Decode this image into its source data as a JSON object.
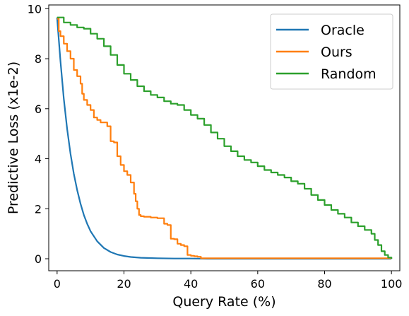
{
  "chart_data": {
    "type": "line",
    "xlabel": "Query Rate (%)",
    "ylabel": "Predictive Loss (x1e-2)",
    "xlim": [
      -2.5,
      102.5
    ],
    "ylim": [
      -0.48,
      10.15
    ],
    "x_ticks": [
      0,
      20,
      40,
      60,
      80,
      100
    ],
    "y_ticks": [
      0,
      2,
      4,
      6,
      8,
      10
    ],
    "grid": false,
    "legend": "top-right",
    "series": [
      {
        "name": "Oracle",
        "color": "#1f77b4",
        "step": false,
        "x": [
          0,
          1,
          2,
          3,
          4,
          5,
          6,
          7,
          8,
          9,
          10,
          12,
          14,
          16,
          18,
          20,
          22,
          25,
          30,
          35,
          40,
          45,
          50,
          60,
          70,
          80,
          90,
          100
        ],
        "y": [
          9.65,
          7.9,
          6.4,
          5.2,
          4.2,
          3.4,
          2.75,
          2.2,
          1.75,
          1.4,
          1.1,
          0.7,
          0.43,
          0.27,
          0.17,
          0.11,
          0.07,
          0.04,
          0.02,
          0.01,
          0.01,
          0.0,
          0.0,
          0.0,
          0.0,
          0.0,
          0.0,
          0.0
        ]
      },
      {
        "name": "Ours",
        "color": "#ff7f0e",
        "step": true,
        "x": [
          0,
          0.5,
          1,
          2,
          3,
          4,
          5,
          6,
          7,
          7.5,
          8,
          9,
          10,
          11,
          12,
          13,
          15,
          16,
          17,
          18,
          19,
          20,
          21,
          22,
          23,
          23.5,
          24,
          24.5,
          25,
          26,
          28,
          30,
          32,
          33,
          34,
          35,
          36,
          37,
          38,
          39,
          40,
          41,
          42,
          43,
          45,
          50,
          60,
          70,
          80,
          90,
          100
        ],
        "y": [
          9.6,
          9.1,
          8.9,
          8.6,
          8.3,
          8.0,
          7.55,
          7.3,
          7.0,
          6.6,
          6.35,
          6.15,
          5.95,
          5.65,
          5.55,
          5.45,
          5.3,
          4.7,
          4.65,
          4.1,
          3.75,
          3.5,
          3.35,
          3.05,
          2.6,
          2.3,
          2.0,
          1.75,
          1.7,
          1.68,
          1.65,
          1.62,
          1.4,
          1.35,
          0.8,
          0.78,
          0.6,
          0.55,
          0.5,
          0.15,
          0.12,
          0.1,
          0.08,
          0.02,
          0.02,
          0.02,
          0.02,
          0.02,
          0.02,
          0.02,
          0.02
        ]
      },
      {
        "name": "Random",
        "color": "#2ca02c",
        "step": true,
        "x": [
          0,
          2,
          4,
          6,
          8,
          10,
          12,
          14,
          16,
          18,
          20,
          22,
          24,
          26,
          28,
          30,
          32,
          34,
          36,
          38,
          40,
          42,
          44,
          46,
          48,
          50,
          52,
          54,
          56,
          58,
          60,
          62,
          64,
          66,
          68,
          70,
          72,
          74,
          76,
          78,
          80,
          82,
          84,
          86,
          88,
          90,
          92,
          94,
          95,
          96,
          97,
          98,
          99,
          100
        ],
        "y": [
          9.65,
          9.45,
          9.35,
          9.25,
          9.2,
          9.0,
          8.8,
          8.5,
          8.15,
          7.75,
          7.4,
          7.15,
          6.9,
          6.7,
          6.55,
          6.45,
          6.3,
          6.2,
          6.15,
          5.95,
          5.75,
          5.6,
          5.35,
          5.05,
          4.8,
          4.5,
          4.3,
          4.1,
          3.95,
          3.85,
          3.7,
          3.55,
          3.45,
          3.35,
          3.25,
          3.1,
          3.0,
          2.8,
          2.55,
          2.35,
          2.15,
          1.95,
          1.8,
          1.65,
          1.45,
          1.3,
          1.15,
          1.0,
          0.75,
          0.55,
          0.3,
          0.15,
          0.05,
          0.0
        ]
      }
    ]
  }
}
